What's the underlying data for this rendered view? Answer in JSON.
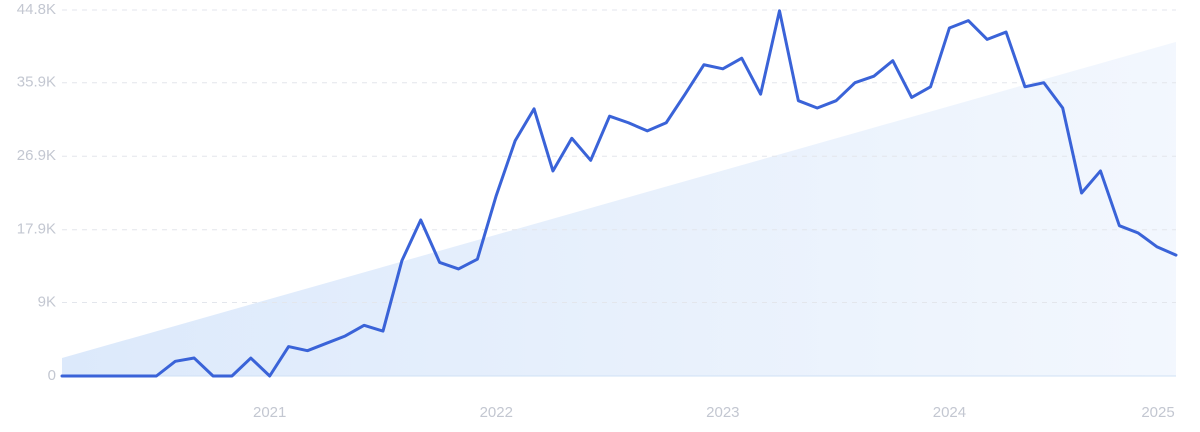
{
  "chart_data": {
    "type": "line",
    "categories": [
      null,
      null,
      null,
      null,
      null,
      null,
      null,
      null,
      null,
      null,
      null,
      "2021",
      null,
      null,
      null,
      null,
      null,
      null,
      null,
      null,
      null,
      null,
      null,
      "2022",
      null,
      null,
      null,
      null,
      null,
      null,
      null,
      null,
      null,
      null,
      null,
      "2023",
      null,
      null,
      null,
      null,
      null,
      null,
      null,
      null,
      null,
      null,
      null,
      "2024",
      null,
      null,
      null,
      null,
      null,
      null,
      null,
      null,
      null,
      null,
      null,
      "2025"
    ],
    "series": [
      {
        "color": "#3a63d8",
        "values": [
          0,
          0,
          0,
          0,
          0,
          0,
          1800,
          2200,
          0,
          0,
          2200,
          0,
          3600,
          3100,
          4000,
          4900,
          6200,
          5500,
          14100,
          19100,
          13900,
          13100,
          14300,
          22100,
          28800,
          32700,
          25100,
          29100,
          26400,
          31800,
          31000,
          30000,
          31000,
          34500,
          38100,
          37600,
          38900,
          34500,
          44700,
          33700,
          32800,
          33700,
          35900,
          36700,
          38600,
          34100,
          35400,
          42600,
          43500,
          41200,
          42100,
          35400,
          35900,
          32800,
          22400,
          25100,
          18400,
          17500,
          15800,
          14800
        ]
      }
    ],
    "trend": [
      2200,
      40900
    ],
    "trend_color": "#dce9fb",
    "ylim": [
      0,
      44800
    ],
    "yticks": [
      0,
      {
        "value": 9000,
        "label": "9K"
      },
      {
        "value": 17900,
        "label": "17.9K"
      },
      {
        "value": 26900,
        "label": "26.9K"
      },
      {
        "value": 35900,
        "label": "35.9K"
      },
      {
        "value": 44800,
        "label": "44.8K"
      }
    ],
    "grid": true
  }
}
